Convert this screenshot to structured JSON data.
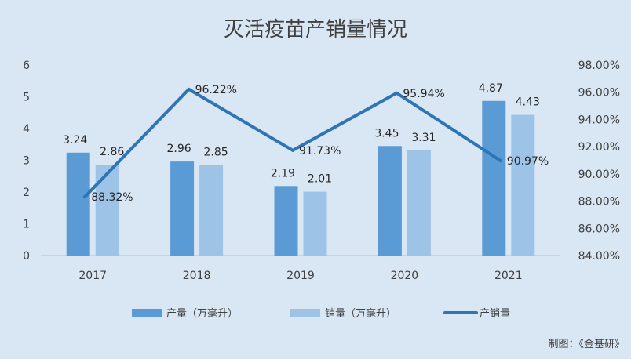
{
  "chart_data": {
    "type": "bar",
    "title": "灭活疫苗产销量情况",
    "categories": [
      "2017",
      "2018",
      "2019",
      "2020",
      "2021"
    ],
    "series": [
      {
        "name": "产量（万毫升）",
        "kind": "bar",
        "axis": "left",
        "color": "#5b9bd5",
        "values": [
          3.24,
          2.96,
          2.19,
          3.45,
          4.87
        ],
        "labels": [
          "3.24",
          "2.96",
          "2.19",
          "3.45",
          "4.87"
        ]
      },
      {
        "name": "销量（万毫升）",
        "kind": "bar",
        "axis": "left",
        "color": "#9dc3e6",
        "values": [
          2.86,
          2.85,
          2.01,
          3.31,
          4.43
        ],
        "labels": [
          "2.86",
          "2.85",
          "2.01",
          "3.31",
          "4.43"
        ]
      },
      {
        "name": "产销量",
        "kind": "line",
        "axis": "right",
        "color": "#2e75b6",
        "values": [
          88.32,
          96.22,
          91.73,
          95.94,
          90.97
        ],
        "labels": [
          "88.32%",
          "96.22%",
          "91.73%",
          "95.94%",
          "90.97%"
        ]
      }
    ],
    "ylim": [
      0,
      6
    ],
    "y_ticks": [
      "0",
      "1",
      "2",
      "3",
      "4",
      "5",
      "6"
    ],
    "y2lim": [
      84,
      98
    ],
    "y2_ticks": [
      "84.00%",
      "86.00%",
      "88.00%",
      "90.00%",
      "92.00%",
      "94.00%",
      "96.00%",
      "98.00%"
    ],
    "grid": false,
    "legend": "bottom"
  },
  "source": "制图：《金基研》"
}
